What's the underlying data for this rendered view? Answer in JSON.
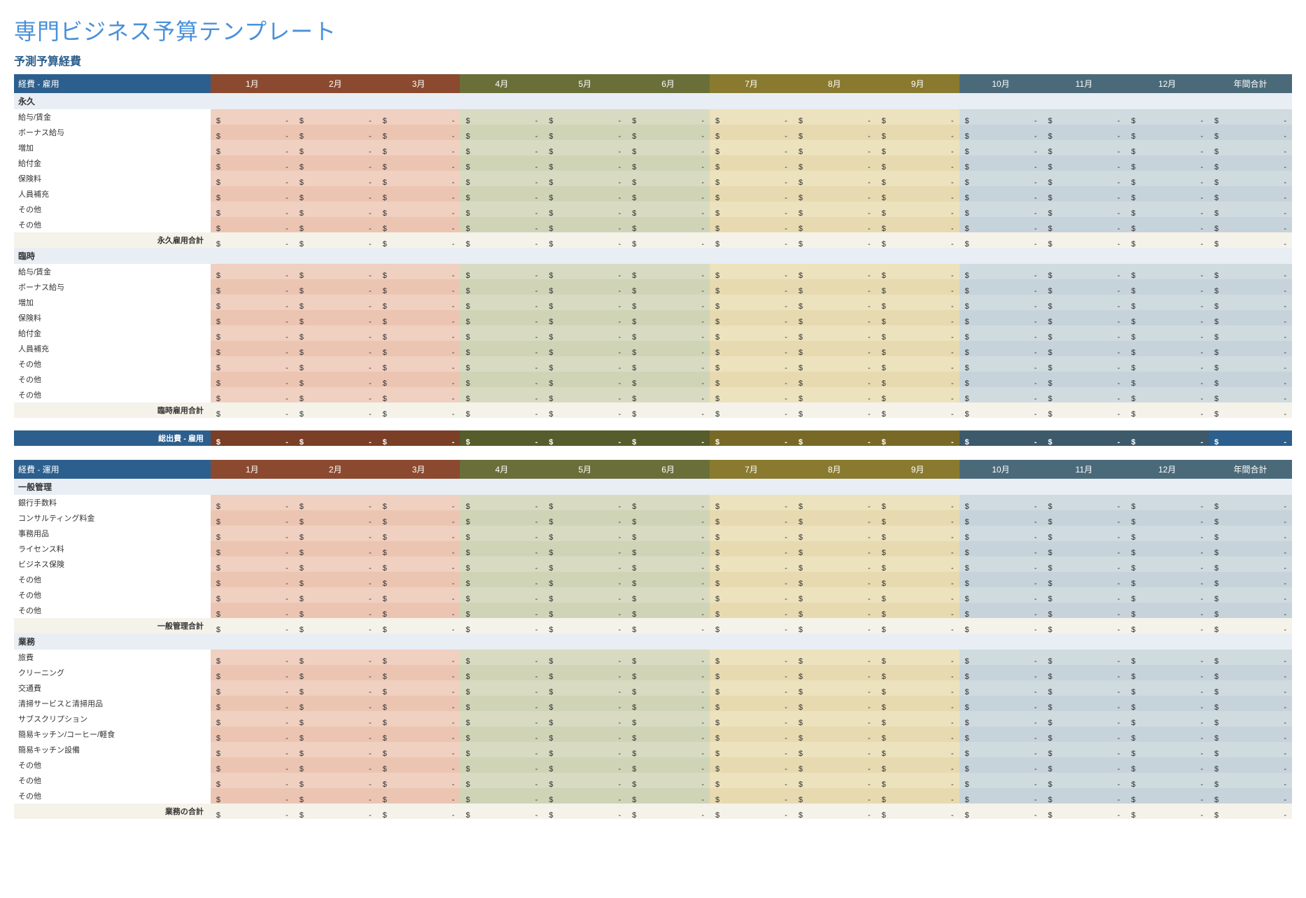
{
  "title": "専門ビジネス予算テンプレート",
  "subtitle": "予測予算経費",
  "title_color": "#4a90d9",
  "subtitle_color": "#2c5f8d",
  "currency_symbol": "$",
  "empty_value": "-",
  "months": [
    "1月",
    "2月",
    "3月",
    "4月",
    "5月",
    "6月",
    "7月",
    "8月",
    "9月",
    "10月",
    "11月",
    "12月"
  ],
  "total_label": "年間合計",
  "quarter_header_colors": [
    "#8b4a2f",
    "#6a6f3a",
    "#8a7a2f",
    "#4a6a7a"
  ],
  "quarter_cell_colors": [
    "#f0d0c0",
    "#d8dbc2",
    "#ece2bd",
    "#d0dbe0"
  ],
  "quarter_cell_colors_alt": [
    "#ecc5b2",
    "#d0d4b6",
    "#e7dab0",
    "#c6d3da"
  ],
  "quarter_grand_colors": [
    "#7a3f26",
    "#565c2c",
    "#786a26",
    "#3d5a6a"
  ],
  "label_header_bg": "#2c5f8d",
  "subheader_bg": "#e8eef4",
  "subtotal_bg": "#f5f2ea",
  "total_header_bg": "#4a6a7a",
  "total_cell_bg": "#d0dbe0",
  "total_cell_bg_alt": "#c6d3da",
  "total_grand_bg": "#2c5f8d",
  "sections": [
    {
      "header": "経費 - 雇用",
      "grand_total_label": "総出費 - 雇用",
      "groups": [
        {
          "name": "永久",
          "rows": [
            "給与/賃金",
            "ボーナス給与",
            "増加",
            "給付金",
            "保険料",
            "人員補充",
            "その他",
            "その他"
          ],
          "subtotal": "永久雇用合計"
        },
        {
          "name": "臨時",
          "rows": [
            "給与/賃金",
            "ボーナス給与",
            "増加",
            "保険料",
            "給付金",
            "人員補充",
            "その他",
            "その他",
            "その他"
          ],
          "subtotal": "臨時雇用合計"
        }
      ]
    },
    {
      "header": "経費 - 運用",
      "grand_total_label": null,
      "groups": [
        {
          "name": "一般管理",
          "rows": [
            "銀行手数料",
            "コンサルティング料金",
            "事務用品",
            "ライセンス料",
            "ビジネス保険",
            "その他",
            "その他",
            "その他"
          ],
          "subtotal": "一般管理合計"
        },
        {
          "name": "業務",
          "rows": [
            "旅費",
            "クリーニング",
            "交通費",
            "清掃サービスと清掃用品",
            "サブスクリプション",
            "簡易キッチン/コーヒー/軽食",
            "簡易キッチン設備",
            "その他",
            "その他",
            "その他"
          ],
          "subtotal": "業務の合計"
        }
      ]
    }
  ]
}
